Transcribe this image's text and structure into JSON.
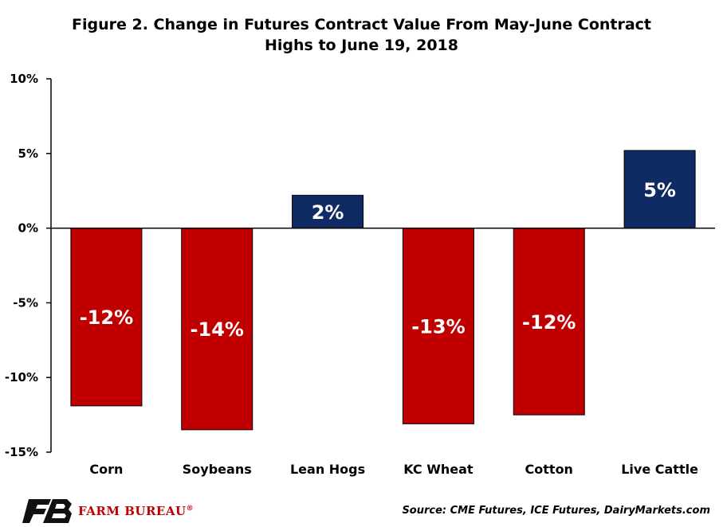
{
  "chart_data": {
    "type": "bar",
    "title_line1": "Figure 2. Change in Futures Contract Value From May-June Contract",
    "title_line2": "Highs to June 19, 2018",
    "categories": [
      "Corn",
      "Soybeans",
      "Lean Hogs",
      "KC Wheat",
      "Cotton",
      "Live Cattle"
    ],
    "values": [
      -11.9,
      -13.5,
      2.2,
      -13.1,
      -12.5,
      5.2
    ],
    "labels": [
      "-12%",
      "-14%",
      "2%",
      "-13%",
      "-12%",
      "5%"
    ],
    "yticks": [
      "10%",
      "5%",
      "0%",
      "-5%",
      "-10%",
      "-15%"
    ],
    "ytick_values": [
      10,
      5,
      0,
      -5,
      -10,
      -15
    ],
    "ylim": [
      -15,
      10
    ],
    "colors": {
      "negative": "#c00000",
      "positive": "#0f2b63"
    },
    "grid": false,
    "legend": "none"
  },
  "branding": {
    "logo_text": "FARM BUREAU",
    "registered": "®"
  },
  "source": "Source: CME Futures, ICE Futures, DairyMarkets.com"
}
